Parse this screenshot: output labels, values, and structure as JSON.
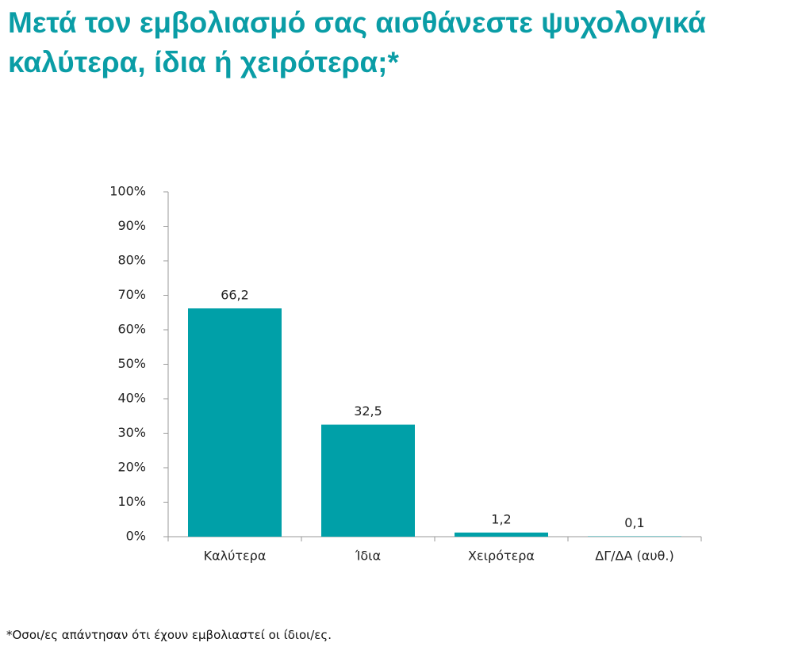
{
  "chart_data": {
    "type": "bar",
    "title": "Μετά τον εμβολιασμό σας αισθάνεστε ψυχολογικά καλύτερα, ίδια ή χειρότερα;*",
    "categories": [
      "Καλύτερα",
      "Ίδια",
      "Χειρότερα",
      "ΔΓ/ΔΑ (αυθ.)"
    ],
    "values": [
      66.2,
      32.5,
      1.2,
      0.1
    ],
    "value_labels": [
      "66,2",
      "32,5",
      "1,2",
      "0,1"
    ],
    "color": "#00a0a8",
    "ylim": [
      0,
      100
    ],
    "yticks": [
      {
        "value": 0,
        "label": "0%"
      },
      {
        "value": 10,
        "label": "10%"
      },
      {
        "value": 20,
        "label": "20%"
      },
      {
        "value": 30,
        "label": "30%"
      },
      {
        "value": 40,
        "label": "40%"
      },
      {
        "value": 50,
        "label": "50%"
      },
      {
        "value": 60,
        "label": "60%"
      },
      {
        "value": 70,
        "label": "70%"
      },
      {
        "value": 80,
        "label": "80%"
      },
      {
        "value": 90,
        "label": "90%"
      },
      {
        "value": 100,
        "label": "100%"
      }
    ],
    "grid": false,
    "footnote": "*Οσοι/ες απάντησαν ότι έχουν εμβολιαστεί οι ίδιοι/ες."
  }
}
